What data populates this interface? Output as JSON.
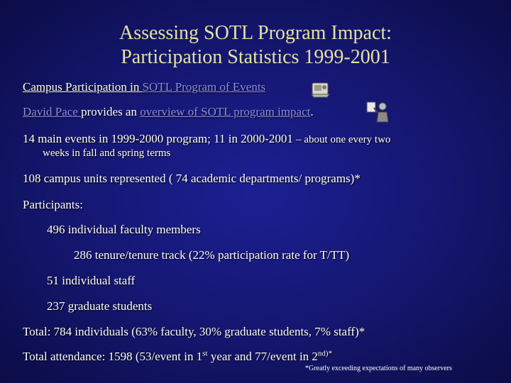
{
  "slide": {
    "title_line1": "Assessing SOTL Program Impact:",
    "title_line2": "Participation Statistics 1999-2001",
    "line1": {
      "prefix": "Campus Participation in ",
      "link": "SOTL Program of Events",
      "icon": "notebook-clipart-icon"
    },
    "line2": {
      "link1": "David Pace ",
      "middle": "provides an ",
      "link2": "overview of SOTL program impact",
      "suffix": ".",
      "icon": "presenter-clipart-icon"
    },
    "line3": "14 main events in  1999-2000 program; 11 in  2000-2001 ",
    "line3_small": "– about one every two",
    "line4": "weeks in fall and spring terms",
    "line5": "108 campus units represented ( 74  academic departments/ programs)*",
    "line6": "Participants:",
    "line7": "496 individual faculty members",
    "line8": "286 tenure/tenure track (22% participation rate  for T/TT)",
    "line9": "51 individual staff",
    "line10": "237 graduate students",
    "line11": "Total: 784 individuals (63% faculty, 30% graduate students, 7% staff)*",
    "line12": {
      "part1": "Total attendance: 1598 (53/event in 1",
      "sup1": "st",
      "part2": " year and 77/event in 2",
      "sup2": "nd)*"
    },
    "footnote": "*Greatly exceeding expectations of many observers"
  }
}
